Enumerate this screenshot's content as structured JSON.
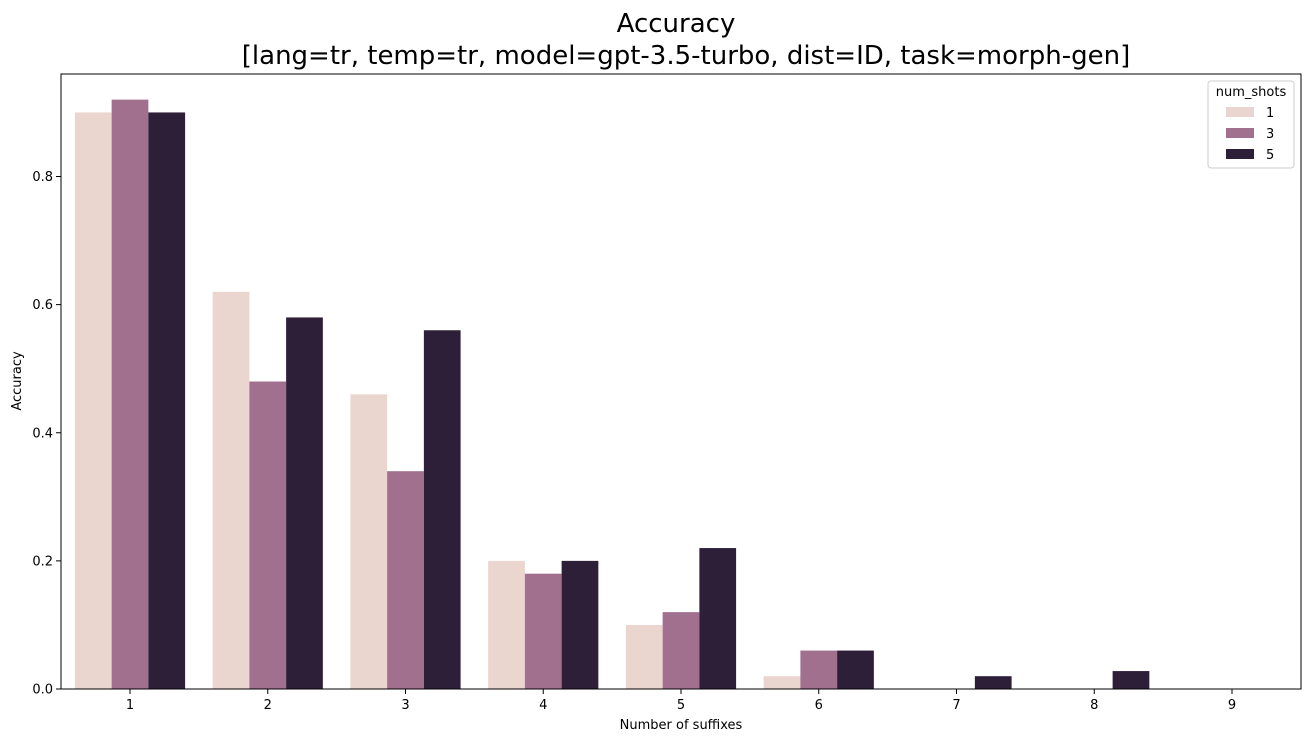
{
  "chart_data": {
    "type": "bar",
    "title": "Accuracy",
    "subtitle": "[lang=tr, temp=tr, model=gpt-3.5-turbo, dist=ID, task=morph-gen]",
    "xlabel": "Number of suffixes",
    "ylabel": "Accuracy",
    "categories": [
      "1",
      "2",
      "3",
      "4",
      "5",
      "6",
      "7",
      "8",
      "9"
    ],
    "ylim": [
      0,
      0.96
    ],
    "yticks": [
      0.0,
      0.2,
      0.4,
      0.6,
      0.8
    ],
    "ytick_labels": [
      "0.0",
      "0.2",
      "0.4",
      "0.6",
      "0.8"
    ],
    "grid": false,
    "legend": {
      "title": "num_shots",
      "position": "top-right"
    },
    "series": [
      {
        "name": "1",
        "color": "#ead5cf",
        "values": [
          0.9,
          0.62,
          0.46,
          0.2,
          0.1,
          0.02,
          0.0,
          0.0,
          0.0
        ]
      },
      {
        "name": "3",
        "color": "#a1708f",
        "values": [
          0.92,
          0.48,
          0.34,
          0.18,
          0.12,
          0.06,
          0.0,
          0.0,
          0.0
        ]
      },
      {
        "name": "5",
        "color": "#2e1f39",
        "values": [
          0.9,
          0.58,
          0.56,
          0.2,
          0.22,
          0.06,
          0.02,
          0.028,
          0.0
        ]
      }
    ]
  }
}
